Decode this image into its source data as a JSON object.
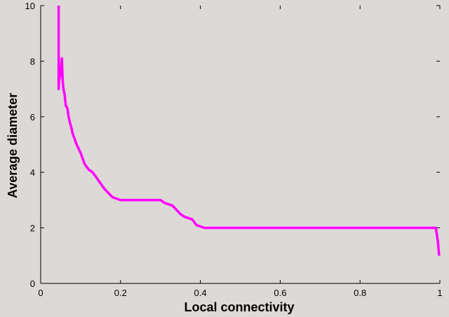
{
  "chart_data": {
    "type": "line",
    "xlabel": "Local connectivity",
    "ylabel": "Average diameter",
    "xlim": [
      0,
      1
    ],
    "ylim": [
      0,
      10
    ],
    "x_ticks": [
      "0",
      "0.2",
      "0.4",
      "0.6",
      "0.8",
      "1"
    ],
    "y_ticks": [
      "0",
      "2",
      "4",
      "6",
      "8",
      "10"
    ],
    "grid": false,
    "colors": {
      "series": "#ff00ff",
      "background": "#ddd9d6"
    },
    "series": [
      {
        "x": [
          0.045,
          0.045,
          0.046,
          0.05,
          0.053,
          0.055,
          0.057,
          0.06,
          0.063,
          0.067,
          0.07,
          0.073,
          0.077,
          0.08,
          0.085,
          0.09,
          0.095,
          0.1,
          0.105,
          0.11,
          0.115,
          0.12,
          0.13,
          0.14,
          0.15,
          0.16,
          0.17,
          0.18,
          0.19,
          0.2,
          0.21,
          0.25,
          0.3,
          0.31,
          0.33,
          0.34,
          0.35,
          0.36,
          0.37,
          0.38,
          0.39,
          0.4,
          0.41,
          0.42,
          0.43,
          0.5,
          0.6,
          0.7,
          0.8,
          0.9,
          0.99,
          0.995,
          0.998
        ],
        "y": [
          10.0,
          7.0,
          7.3,
          7.6,
          8.1,
          7.3,
          7.0,
          6.8,
          6.4,
          6.3,
          6.0,
          5.8,
          5.6,
          5.4,
          5.2,
          5.0,
          4.85,
          4.7,
          4.5,
          4.3,
          4.2,
          4.1,
          4.0,
          3.8,
          3.6,
          3.4,
          3.25,
          3.1,
          3.05,
          3.0,
          3.0,
          3.0,
          3.0,
          2.9,
          2.8,
          2.65,
          2.5,
          2.4,
          2.35,
          2.3,
          2.1,
          2.05,
          2.0,
          2.0,
          2.0,
          2.0,
          2.0,
          2.0,
          2.0,
          2.0,
          2.0,
          1.5,
          1.0
        ]
      }
    ]
  }
}
